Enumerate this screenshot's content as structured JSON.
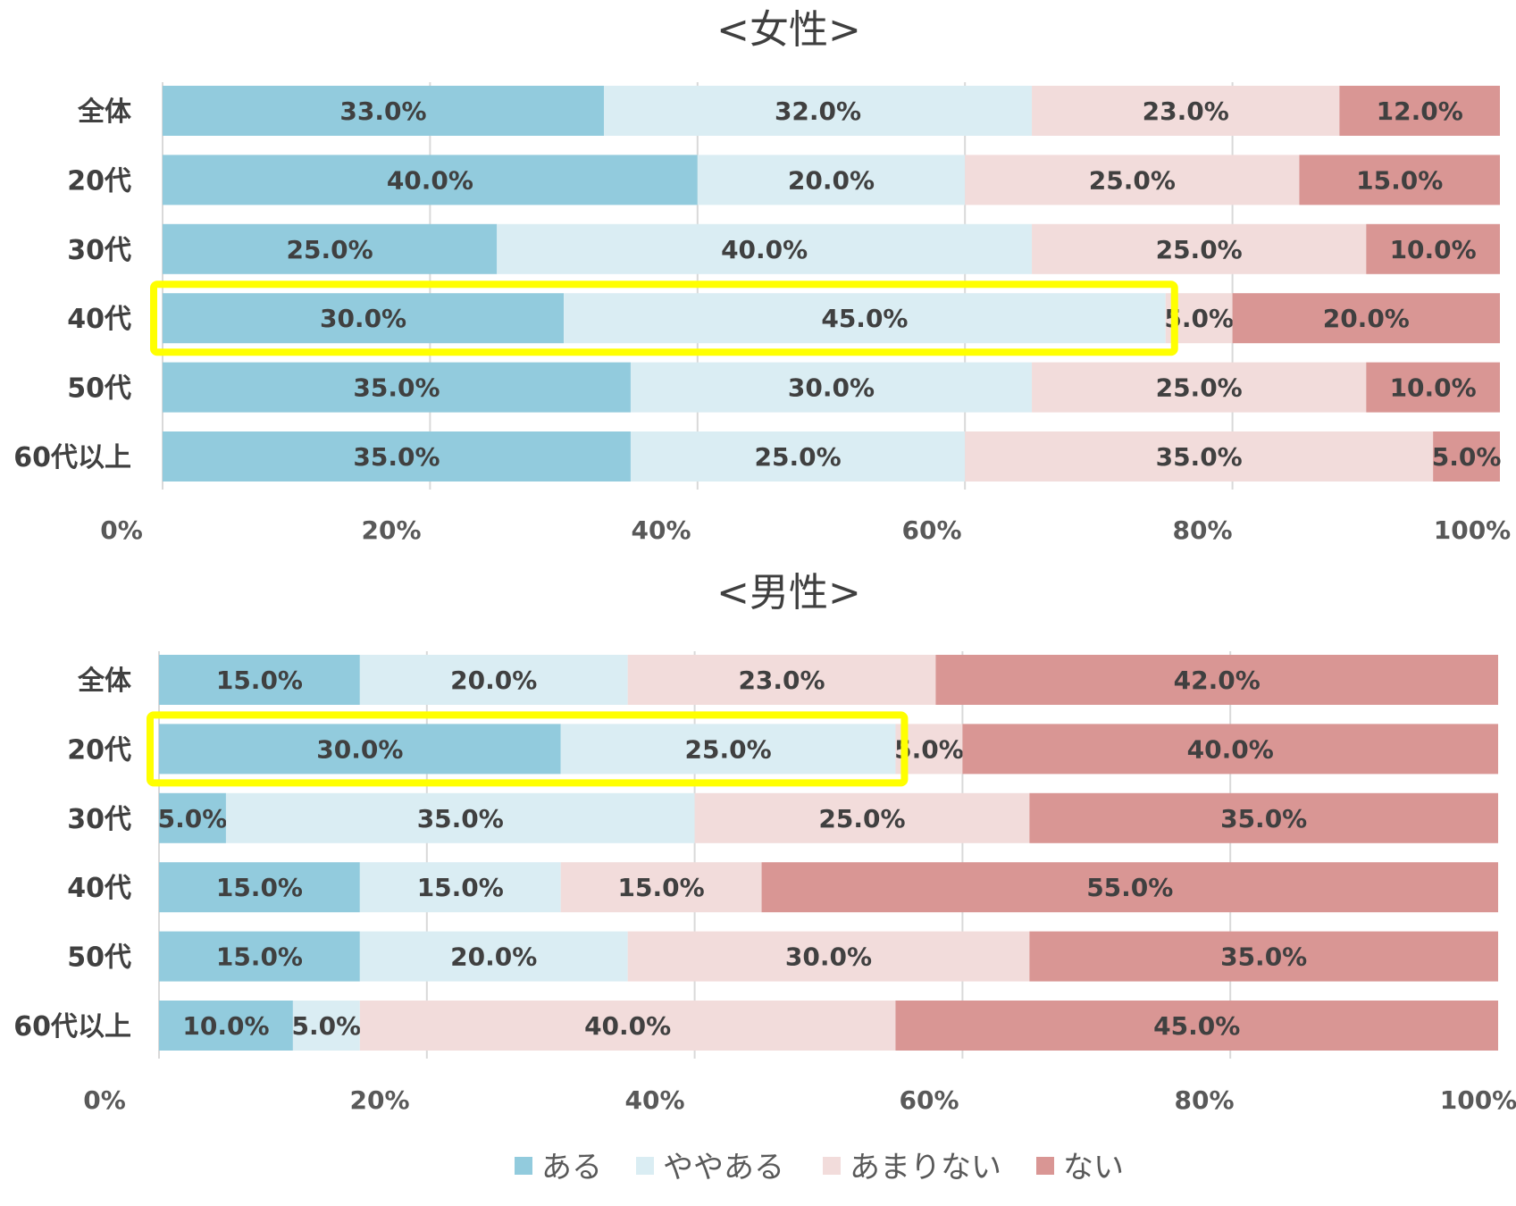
{
  "chart_data": {
    "type": "bar",
    "orientation": "horizontal",
    "stacked": "percent",
    "xlim": [
      0,
      100
    ],
    "x_ticks": [
      "0%",
      "20%",
      "40%",
      "60%",
      "80%",
      "100%"
    ],
    "grid": true,
    "legend_position": "bottom",
    "legend": [
      {
        "name": "ある",
        "color": "#92cbdd"
      },
      {
        "name": "ややある",
        "color": "#daedf3"
      },
      {
        "name": "あまりない",
        "color": "#f2dcdb"
      },
      {
        "name": "ない",
        "color": "#d99694"
      }
    ],
    "panels": [
      {
        "title": "<女性>",
        "categories": [
          "全体",
          "20代",
          "30代",
          "40代",
          "50代",
          "60代以上"
        ],
        "series": [
          {
            "name": "ある",
            "values": [
              33.0,
              40.0,
              25.0,
              30.0,
              35.0,
              35.0
            ]
          },
          {
            "name": "ややある",
            "values": [
              32.0,
              20.0,
              40.0,
              45.0,
              30.0,
              25.0
            ]
          },
          {
            "name": "あまりない",
            "values": [
              23.0,
              25.0,
              25.0,
              5.0,
              25.0,
              35.0
            ]
          },
          {
            "name": "ない",
            "values": [
              12.0,
              15.0,
              10.0,
              20.0,
              10.0,
              5.0
            ]
          }
        ],
        "highlighted_category": "40代"
      },
      {
        "title": "<男性>",
        "categories": [
          "全体",
          "20代",
          "30代",
          "40代",
          "50代",
          "60代以上"
        ],
        "series": [
          {
            "name": "ある",
            "values": [
              15.0,
              30.0,
              5.0,
              15.0,
              15.0,
              10.0
            ]
          },
          {
            "name": "ややある",
            "values": [
              20.0,
              25.0,
              35.0,
              15.0,
              20.0,
              5.0
            ]
          },
          {
            "name": "あまりない",
            "values": [
              23.0,
              5.0,
              25.0,
              15.0,
              30.0,
              40.0
            ]
          },
          {
            "name": "ない",
            "values": [
              42.0,
              40.0,
              35.0,
              55.0,
              35.0,
              45.0
            ]
          }
        ],
        "highlighted_category": "20代"
      }
    ]
  }
}
